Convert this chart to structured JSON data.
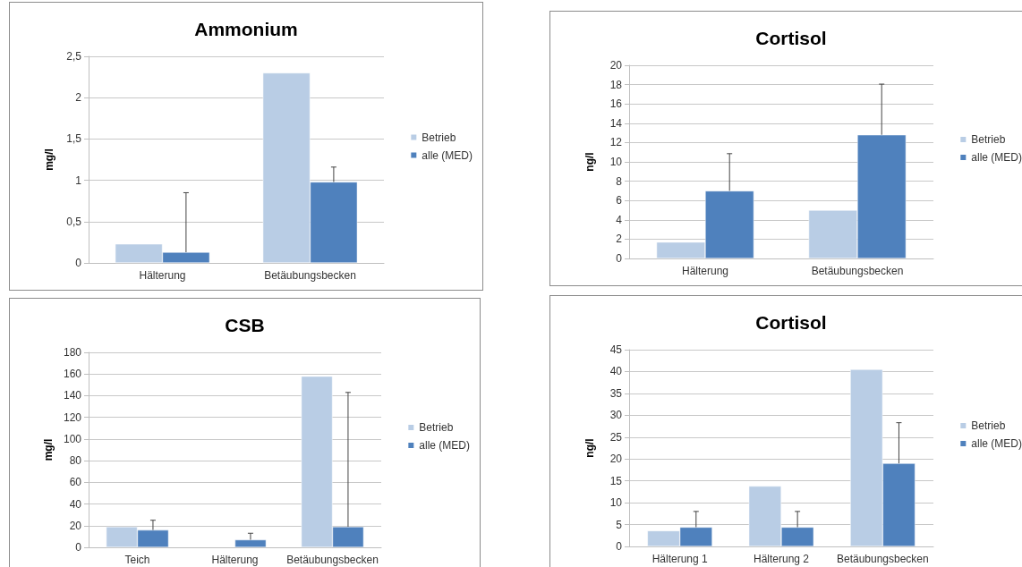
{
  "chart_data": [
    {
      "type": "bar",
      "title": "Ammonium",
      "ylabel": "mg/l",
      "categories": [
        "Hälterung",
        "Betäubungsbecken"
      ],
      "series": [
        {
          "name": "Betrieb",
          "color": "#b9cde5",
          "values": [
            0.23,
            2.3
          ]
        },
        {
          "name": "alle (MED)",
          "color": "#4f81bd",
          "values": [
            0.13,
            0.98
          ],
          "errors": [
            [
              0.13,
              0.85
            ],
            [
              0.98,
              1.16
            ]
          ]
        }
      ],
      "ylim": [
        0,
        2.5
      ],
      "yticks": [
        0,
        {
          "value": 0.5,
          "label": "0,5"
        },
        1,
        {
          "value": 1.5,
          "label": "1,5"
        },
        2,
        {
          "value": 2.5,
          "label": "2,5"
        }
      ],
      "grid": "y",
      "legend": "right"
    },
    {
      "type": "bar",
      "title": "Cortisol",
      "ylabel": "ng/l",
      "categories": [
        "Hälterung",
        "Betäubungsbecken"
      ],
      "series": [
        {
          "name": "Betrieb",
          "color": "#b9cde5",
          "values": [
            1.7,
            5.0
          ]
        },
        {
          "name": "alle (MED)",
          "color": "#4f81bd",
          "values": [
            7.0,
            12.8
          ],
          "errors": [
            [
              7.0,
              10.85
            ],
            [
              12.8,
              18.05
            ]
          ]
        }
      ],
      "ylim": [
        0,
        20
      ],
      "yticks": [
        0,
        2,
        4,
        6,
        8,
        10,
        12,
        14,
        16,
        18,
        20
      ],
      "grid": "y",
      "legend": "right"
    },
    {
      "type": "bar",
      "title": "CSB",
      "ylabel": "mg/l",
      "categories": [
        "Teich",
        "Hälterung",
        "Betäubungsbecken"
      ],
      "series": [
        {
          "name": "Betrieb",
          "color": "#b9cde5",
          "values": [
            19,
            null,
            158
          ]
        },
        {
          "name": "alle (MED)",
          "color": "#4f81bd",
          "values": [
            16,
            7,
            19
          ],
          "errors": [
            [
              16,
              25
            ],
            [
              7,
              13
            ],
            [
              19,
              143
            ]
          ]
        }
      ],
      "ylim": [
        0,
        180
      ],
      "yticks": [
        0,
        20,
        40,
        60,
        80,
        100,
        120,
        140,
        160,
        180
      ],
      "grid": "y",
      "legend": "right"
    },
    {
      "type": "bar",
      "title": "Cortisol",
      "ylabel": "ng/l",
      "categories": [
        "Hälterung 1",
        "Hälterung 2",
        "Betäubungsbecken"
      ],
      "series": [
        {
          "name": "Betrieb",
          "color": "#b9cde5",
          "values": [
            3.6,
            13.8,
            40.5
          ]
        },
        {
          "name": "alle (MED)",
          "color": "#4f81bd",
          "values": [
            4.4,
            4.4,
            19
          ],
          "errors": [
            [
              4.4,
              8
            ],
            [
              4.4,
              8
            ],
            [
              19,
              28.3
            ]
          ]
        }
      ],
      "ylim": [
        0,
        45
      ],
      "yticks": [
        0,
        5,
        10,
        15,
        20,
        25,
        30,
        35,
        40,
        45
      ],
      "grid": "y",
      "legend": "right"
    }
  ]
}
